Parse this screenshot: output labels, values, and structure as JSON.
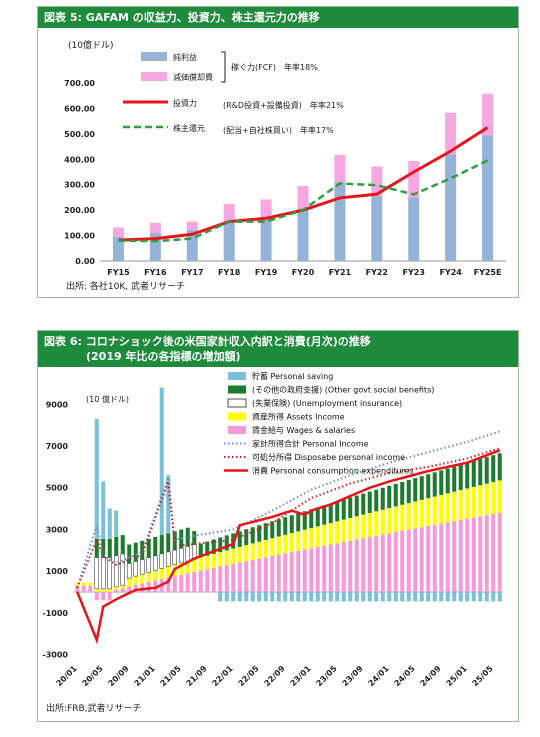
{
  "chart_data": [
    {
      "type": "bar",
      "title": "図表 5: GAFAM の収益力、投資力、株主還元力の推移",
      "unit_label": "(10億ドル)",
      "categories": [
        "FY15",
        "FY16",
        "FY17",
        "FY18",
        "FY19",
        "FY20",
        "FY21",
        "FY22",
        "FY23",
        "FY24",
        "FY25E"
      ],
      "ylim": [
        0,
        700
      ],
      "yticks": [
        "0.00",
        "100.00",
        "200.00",
        "300.00",
        "400.00",
        "500.00",
        "600.00",
        "700.00"
      ],
      "series": [
        {
          "name": "純利益",
          "kind": "stacked_bar",
          "color": "#95b3d7",
          "values": [
            95,
            110,
            120,
            160,
            175,
            205,
            310,
            255,
            250,
            420,
            495
          ]
        },
        {
          "name": "減価償却費",
          "kind": "stacked_bar",
          "color": "#f8a8e0",
          "values": [
            37,
            40,
            35,
            65,
            67,
            90,
            108,
            117,
            143,
            163,
            163
          ]
        },
        {
          "name": "投資力",
          "kind": "line",
          "color": "#e8141b",
          "values": [
            82,
            88,
            105,
            155,
            168,
            200,
            248,
            263,
            350,
            432,
            525
          ]
        },
        {
          "name": "株主還元",
          "kind": "dashed_line",
          "color": "#2e9e3e",
          "values": [
            80,
            78,
            88,
            155,
            155,
            200,
            305,
            298,
            262,
            325,
            395
          ]
        }
      ],
      "annotations": [
        {
          "text": "稼ぐ力(FCF)　年率18%"
        },
        {
          "text": "(R&D投資+設備投資)　年率21%"
        },
        {
          "text": "(配当+自社株買い)　年率17%"
        }
      ],
      "source": "出所: 各社10K, 武者リサーチ"
    },
    {
      "type": "bar",
      "title_line1": "図表 6: コロナショック後の米国家計収入内訳と消費(月次)の推移",
      "title_line2": "(2019 年比の各指標の増加額)",
      "unit_label": "(10 億ドル)",
      "ylim": [
        -3500,
        10500
      ],
      "yticks": [
        "9000",
        "7000",
        "5000",
        "3000",
        "1000",
        "-1000",
        "-3000"
      ],
      "xticks": [
        "20/01",
        "20/05",
        "20/09",
        "21/01",
        "21/05",
        "21/09",
        "22/01",
        "22/05",
        "22/09",
        "23/01",
        "23/05",
        "23/09",
        "24/01",
        "24/05",
        "24/09",
        "25/01",
        "25/05"
      ],
      "legend": [
        {
          "name": "貯蓄 Personal saving",
          "color": "#7ac0d8",
          "kind": "bar"
        },
        {
          "name": "(その他の政府支援) (Other govt social benefits)",
          "color": "#1e7a2e",
          "kind": "bar"
        },
        {
          "name": "(失業保険) (Unemployment insurance)",
          "color": "#ffffff",
          "kind": "bar"
        },
        {
          "name": "資産所得 Assets Income",
          "color": "#ffff00",
          "kind": "bar"
        },
        {
          "name": "賃金給与 Wages & salaries",
          "color": "#f59ad8",
          "kind": "bar"
        },
        {
          "name": "家計所得合計 Personal Income",
          "color": "#6a8fd0",
          "kind": "dotted_line"
        },
        {
          "name": "可処分所得 Disposabe personal income",
          "color": "#d02020",
          "kind": "dotted_line"
        },
        {
          "name": "消費 Personal consumption expenditures",
          "color": "#e8141b",
          "kind": "line"
        }
      ],
      "months": 66,
      "consumption_anchors": [
        [
          0,
          0
        ],
        [
          3,
          -2300
        ],
        [
          4,
          -700
        ],
        [
          6,
          -350
        ],
        [
          9,
          100
        ],
        [
          12,
          200
        ],
        [
          14,
          500
        ],
        [
          15,
          1100
        ],
        [
          18,
          1600
        ],
        [
          24,
          2300
        ],
        [
          25,
          3200
        ],
        [
          30,
          3600
        ],
        [
          33,
          3900
        ],
        [
          35,
          3700
        ],
        [
          36,
          3900
        ],
        [
          39,
          4200
        ],
        [
          42,
          4600
        ],
        [
          45,
          5000
        ],
        [
          48,
          5300
        ],
        [
          54,
          5800
        ],
        [
          60,
          6200
        ],
        [
          65,
          6800
        ]
      ],
      "personal_income_anchors": [
        [
          0,
          200
        ],
        [
          3,
          3200
        ],
        [
          4,
          1800
        ],
        [
          6,
          1400
        ],
        [
          10,
          1900
        ],
        [
          14,
          5500
        ],
        [
          15,
          2500
        ],
        [
          18,
          2700
        ],
        [
          24,
          3000
        ],
        [
          30,
          3900
        ],
        [
          36,
          4900
        ],
        [
          42,
          5600
        ],
        [
          48,
          6200
        ],
        [
          54,
          6700
        ],
        [
          60,
          7200
        ],
        [
          65,
          7700
        ]
      ],
      "disposable_income_anchors": [
        [
          0,
          200
        ],
        [
          3,
          2500
        ],
        [
          4,
          1700
        ],
        [
          6,
          1300
        ],
        [
          10,
          1800
        ],
        [
          14,
          5300
        ],
        [
          15,
          2200
        ],
        [
          18,
          2300
        ],
        [
          24,
          2500
        ],
        [
          30,
          3300
        ],
        [
          36,
          4500
        ],
        [
          42,
          5200
        ],
        [
          48,
          5700
        ],
        [
          54,
          6000
        ],
        [
          60,
          6400
        ],
        [
          65,
          6900
        ]
      ],
      "saving_spikes": [
        [
          3,
          8300
        ],
        [
          4,
          5300
        ],
        [
          5,
          4000
        ],
        [
          6,
          3900
        ],
        [
          7,
          2400
        ],
        [
          8,
          2300
        ],
        [
          9,
          2100
        ],
        [
          13,
          9800
        ],
        [
          14,
          5600
        ],
        [
          15,
          2500
        ]
      ],
      "source": "出所:FRB,武者リサーチ"
    }
  ]
}
